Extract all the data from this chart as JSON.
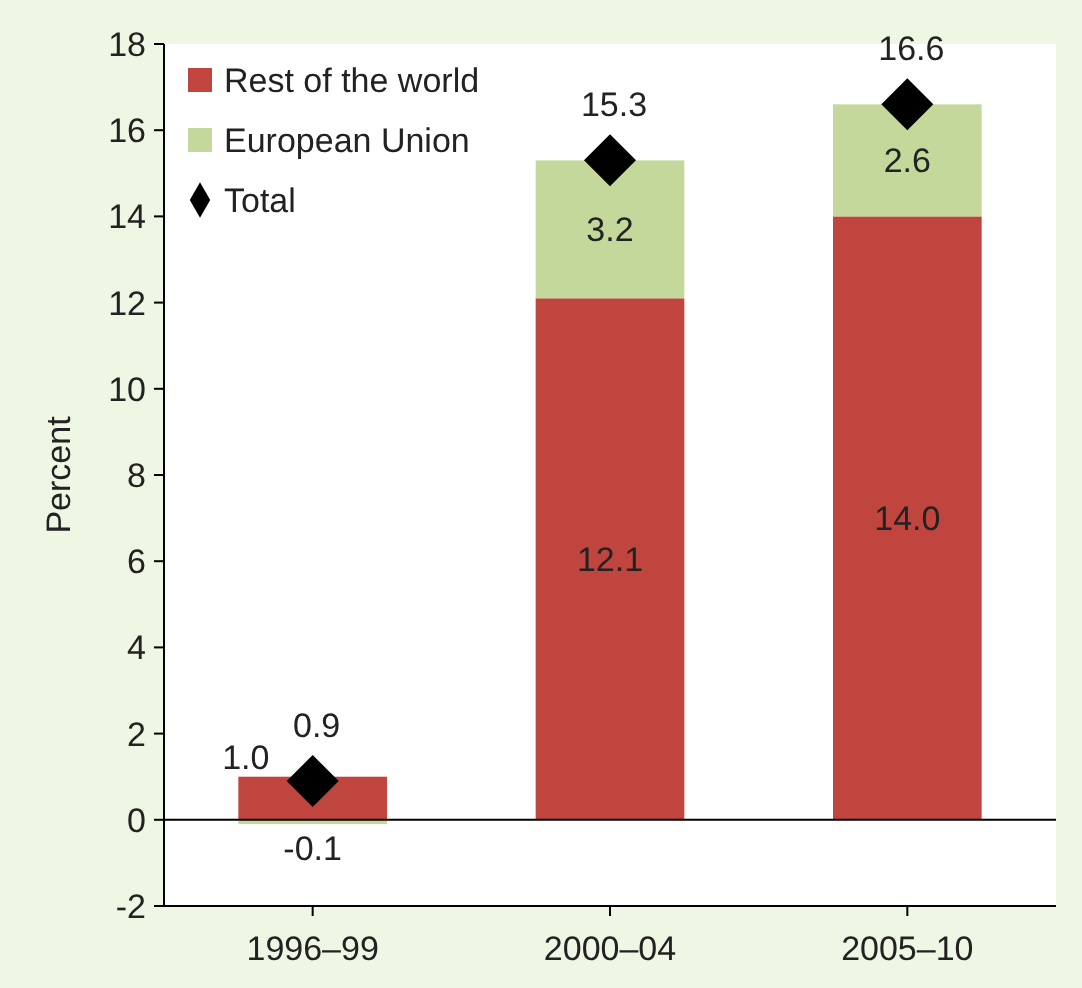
{
  "chart_data": {
    "type": "bar",
    "stacked": true,
    "ylabel": "Percent",
    "categories": [
      "1996–99",
      "2000–04",
      "2005–10"
    ],
    "series": [
      {
        "name": "Rest of the world",
        "color": "#c0453f",
        "values": [
          1.0,
          12.1,
          14.0
        ],
        "value_labels": [
          "1.0",
          "12.1",
          "14.0"
        ]
      },
      {
        "name": "European Union",
        "color": "#c3d89a",
        "values": [
          -0.1,
          3.2,
          2.6
        ]
      },
      {
        "name": "Total",
        "type": "scatter",
        "marker": "diamond",
        "color": "#000000",
        "values": [
          0.9,
          15.3,
          16.6
        ]
      }
    ],
    "ylim": [
      -2,
      18
    ],
    "yticks": [
      -2,
      0,
      2,
      4,
      6,
      8,
      10,
      12,
      14,
      16,
      18
    ],
    "data_labels": true,
    "legend": "top left"
  }
}
